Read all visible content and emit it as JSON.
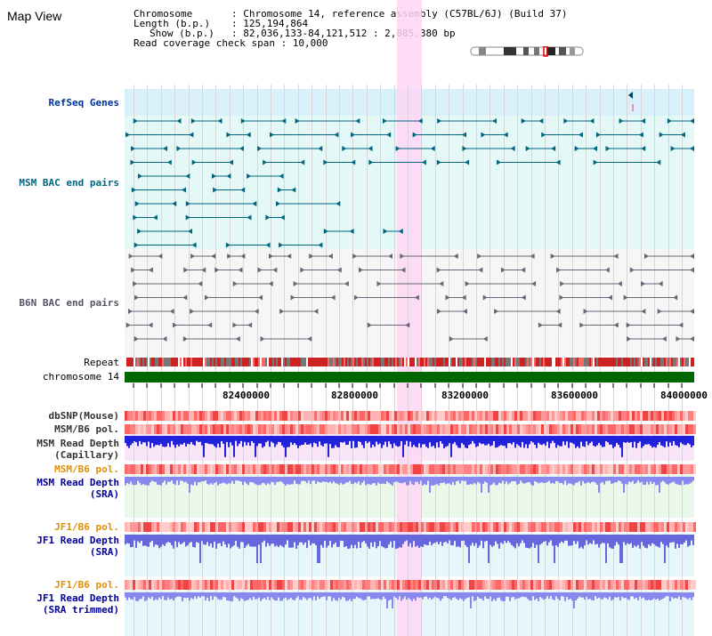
{
  "title": "Map View",
  "info": {
    "chromosome_key": "Chromosome",
    "chromosome_val": ": Chromosome 14, reference assembly (C57BL/6J) (Build 37)",
    "length_key": "Length (b.p.)",
    "length_val": ": 125,194,864",
    "show_key": "Show (b.p.)",
    "show_val": ": 82,036,133-84,121,512 : 2,085,380 bp",
    "span_text": "Read coverage check span : 10,000"
  },
  "tracks": {
    "refseq": "RefSeq Genes",
    "msm_bac": "MSM BAC end pairs",
    "b6n_bac": "B6N BAC end pairs",
    "repeat": "Repeat",
    "chrom": "chromosome 14",
    "dbsnp": "dbSNP(Mouse)",
    "msm_b6_pol_1": "MSM/B6 pol.",
    "msm_read_depth_cap_1": "MSM Read Depth",
    "msm_read_depth_cap_2": "(Capillary)",
    "msm_b6_pol_2": "MSM/B6 pol.",
    "msm_read_depth_sra_1": "MSM Read Depth",
    "msm_read_depth_sra_2": "(SRA)",
    "jf1_b6_pol_1": "JF1/B6 pol.",
    "jf1_read_depth_1": "JF1 Read Depth",
    "jf1_read_depth_2": "(SRA)",
    "jf1_b6_pol_2": "JF1/B6 pol.",
    "jf1_trim_1": "JF1 Read Depth",
    "jf1_trim_2": "(SRA trimmed)"
  },
  "axis": {
    "ticks": [
      "82400000",
      "82800000",
      "83200000",
      "83600000",
      "84000000"
    ]
  },
  "colors": {
    "refseq": "#003399",
    "msm_bac": "#006680",
    "b6n_bac": "#555566",
    "orange": "#e09000",
    "blue": "#000099",
    "highlight": "#ffd6f5"
  }
}
